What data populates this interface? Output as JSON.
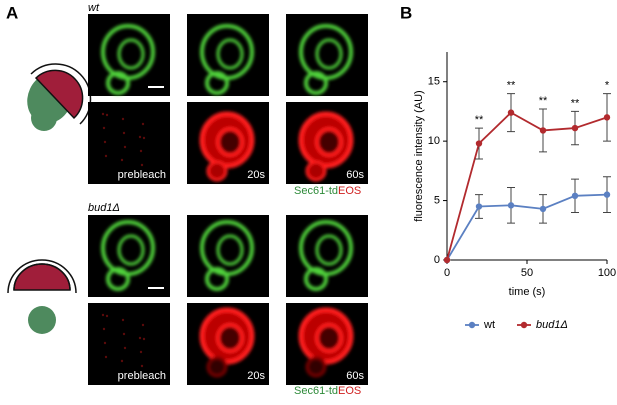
{
  "panel_labels": [
    "A",
    "B"
  ],
  "panel_a": {
    "top_label": "wt",
    "bottom_label": "bud1Δ",
    "timepoints": [
      "prebleach",
      "20s",
      "60s"
    ],
    "reporter": [
      "Sec61-td",
      "EOS"
    ]
  },
  "chart_data": {
    "type": "line",
    "x": [
      0,
      20,
      40,
      60,
      80,
      100
    ],
    "series": [
      {
        "name": "wt",
        "color": "#5b80c2",
        "values": [
          0,
          4.5,
          4.6,
          4.3,
          5.4,
          5.5
        ],
        "errors": [
          0,
          1.0,
          1.5,
          1.2,
          1.4,
          1.5
        ]
      },
      {
        "name": "bud1Δ",
        "color": "#b22a2e",
        "values": [
          0,
          9.8,
          12.4,
          10.9,
          11.1,
          12.0
        ],
        "errors": [
          0,
          1.3,
          1.6,
          1.8,
          1.4,
          2.0
        ]
      }
    ],
    "annotations": [
      {
        "x": 20,
        "label": "**"
      },
      {
        "x": 40,
        "label": "**"
      },
      {
        "x": 60,
        "label": "**"
      },
      {
        "x": 80,
        "label": "**"
      },
      {
        "x": 100,
        "label": "*"
      }
    ],
    "xlabel": "time (s)",
    "ylabel": "fluorescence intensity (AU)",
    "xlim": [
      0,
      100
    ],
    "xticks": [
      0,
      50,
      100
    ],
    "ylim": [
      0,
      17.5
    ],
    "yticks": [
      0,
      5,
      10,
      15
    ],
    "legend": "bottom"
  }
}
